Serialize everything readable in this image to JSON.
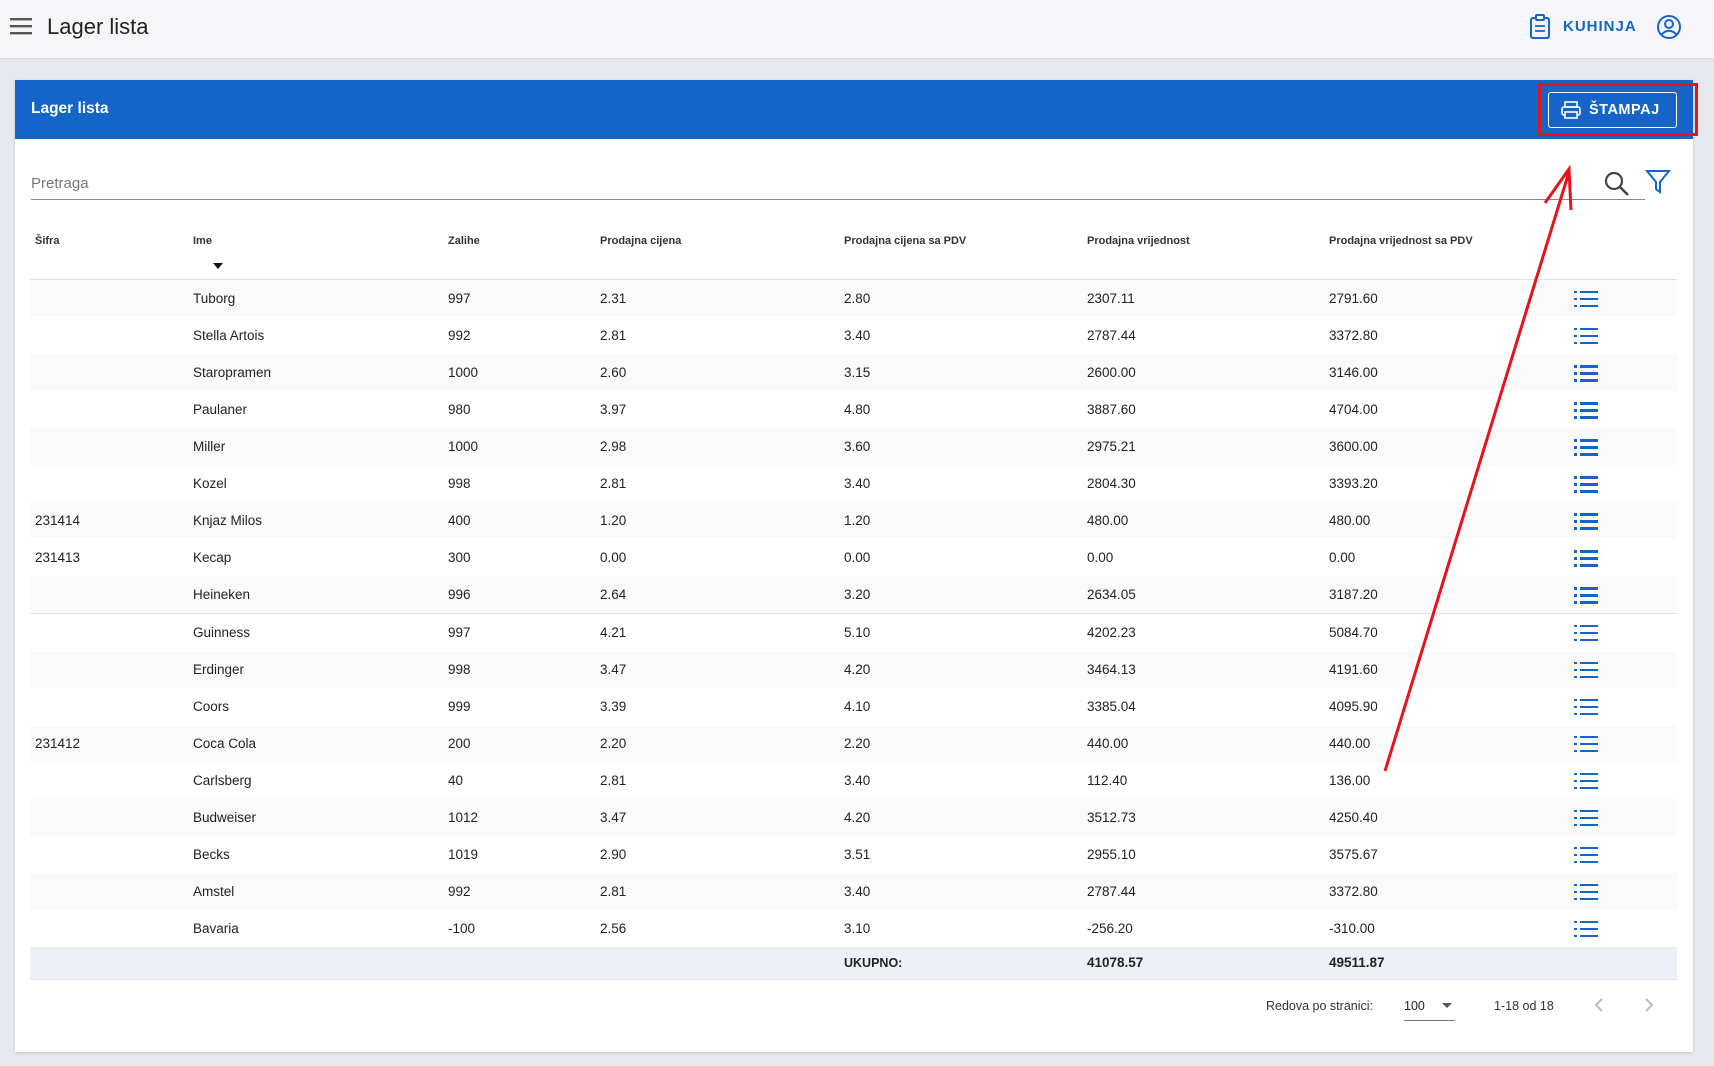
{
  "header": {
    "title": "Lager lista",
    "action": "KUHINJA"
  },
  "card": {
    "title": "Lager lista",
    "print_button": "ŠTAMPAJ",
    "search_placeholder": "Pretraga"
  },
  "table": {
    "columns": [
      "Šifra",
      "Ime",
      "Zalihe",
      "Prodajna cijena",
      "Prodajna cijena sa PDV",
      "Prodajna vrijednost",
      "Prodajna vrijednost sa PDV"
    ],
    "rows": [
      [
        null,
        "Tuborg",
        "997",
        "2.31",
        "2.80",
        "2307.11",
        "2791.60"
      ],
      [
        null,
        "Stella Artois",
        "992",
        "2.81",
        "3.40",
        "2787.44",
        "3372.80"
      ],
      [
        null,
        "Staropramen",
        "1000",
        "2.60",
        "3.15",
        "2600.00",
        "3146.00"
      ],
      [
        null,
        "Paulaner",
        "980",
        "3.97",
        "4.80",
        "3887.60",
        "4704.00"
      ],
      [
        null,
        "Miller",
        "1000",
        "2.98",
        "3.60",
        "2975.21",
        "3600.00"
      ],
      [
        null,
        "Kozel",
        "998",
        "2.81",
        "3.40",
        "2804.30",
        "3393.20"
      ],
      [
        "231414",
        "Knjaz Milos",
        "400",
        "1.20",
        "1.20",
        "480.00",
        "480.00"
      ],
      [
        "231413",
        "Kecap",
        "300",
        "0.00",
        "0.00",
        "0.00",
        "0.00"
      ],
      [
        null,
        "Heineken",
        "996",
        "2.64",
        "3.20",
        "2634.05",
        "3187.20"
      ],
      [
        null,
        "Guinness",
        "997",
        "4.21",
        "5.10",
        "4202.23",
        "5084.70"
      ],
      [
        null,
        "Erdinger",
        "998",
        "3.47",
        "4.20",
        "3464.13",
        "4191.60"
      ],
      [
        null,
        "Coors",
        "999",
        "3.39",
        "4.10",
        "3385.04",
        "4095.90"
      ],
      [
        "231412",
        "Coca Cola",
        "200",
        "2.20",
        "2.20",
        "440.00",
        "440.00"
      ],
      [
        null,
        "Carlsberg",
        "40",
        "2.81",
        "3.40",
        "112.40",
        "136.00"
      ],
      [
        null,
        "Budweiser",
        "1012",
        "3.47",
        "4.20",
        "3512.73",
        "4250.40"
      ],
      [
        null,
        "Becks",
        "1019",
        "2.90",
        "3.51",
        "2955.10",
        "3575.67"
      ],
      [
        null,
        "Amstel",
        "992",
        "2.81",
        "3.40",
        "2787.44",
        "3372.80"
      ],
      [
        null,
        "Bavaria",
        "-100",
        "2.56",
        "3.10",
        "-256.20",
        "-310.00"
      ]
    ],
    "total": {
      "label": "UKUPNO:",
      "values": [
        "41078.57",
        "49511.87"
      ]
    }
  },
  "pagination": {
    "rows_per_page_label": "Redova po stranici:",
    "rows_per_page": "100",
    "range": "1-18 od 18"
  }
}
